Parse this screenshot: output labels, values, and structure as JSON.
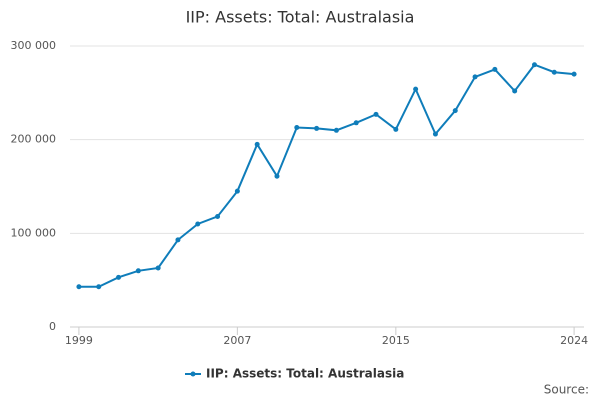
{
  "chart_data": {
    "type": "line",
    "title": "IIP: Assets: Total: Australasia",
    "x": [
      1999,
      2000,
      2001,
      2002,
      2003,
      2004,
      2005,
      2006,
      2007,
      2008,
      2009,
      2010,
      2011,
      2012,
      2013,
      2014,
      2015,
      2016,
      2017,
      2018,
      2019,
      2020,
      2021,
      2022,
      2023,
      2024
    ],
    "series": [
      {
        "name": "IIP: Assets: Total: Australasia",
        "color": "#0f7dba",
        "values": [
          43000,
          43000,
          53000,
          60000,
          63000,
          93000,
          110000,
          118000,
          145000,
          195000,
          161000,
          213000,
          212000,
          210000,
          218000,
          227000,
          211000,
          254000,
          206000,
          231000,
          267000,
          275000,
          252000,
          280000,
          272000,
          270000
        ]
      }
    ],
    "xlim": [
      1998.55,
      2024.5
    ],
    "xticks": [
      1999,
      2007,
      2015,
      2024
    ],
    "ylim": [
      0,
      300000
    ],
    "yticks": [
      0,
      {
        "value": 100000,
        "label": "100 000"
      },
      {
        "value": 200000,
        "label": "200 000"
      },
      {
        "value": 300000,
        "label": "300 000"
      }
    ],
    "grid": true,
    "legend": "bottom",
    "source": "Source:"
  }
}
